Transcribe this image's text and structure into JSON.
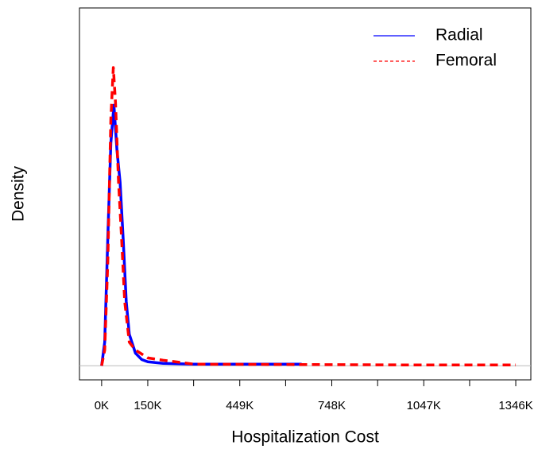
{
  "chart_data": {
    "type": "line",
    "xlabel": "Hospitalization Cost",
    "ylabel": "Density",
    "xlim": [
      -72000,
      1395000
    ],
    "ylim": [
      -9e-07,
      2.28e-05
    ],
    "xticks": [
      {
        "value": 0,
        "label": "0K"
      },
      {
        "value": 150000,
        "label": "150K"
      },
      {
        "value": 449000,
        "label": "449K"
      },
      {
        "value": 748000,
        "label": "748K"
      },
      {
        "value": 1047000,
        "label": "1047K"
      },
      {
        "value": 1346000,
        "label": "1346K"
      }
    ],
    "xminorticks": [
      299000,
      598000,
      897000,
      1196000
    ],
    "legend": "topright",
    "series": [
      {
        "name": "Radial",
        "color": "#0000ff",
        "dash": false,
        "x": [
          0,
          10000,
          20000,
          30000,
          40000,
          50000,
          60000,
          70000,
          80000,
          90000,
          110000,
          130000,
          150000,
          200000,
          300000,
          450000,
          650000
        ],
        "values": [
          0,
          1.5e-06,
          8.1e-06,
          1.42e-05,
          1.66e-05,
          1.37e-05,
          1.17e-05,
          8.1e-06,
          4.1e-06,
          2e-06,
          8e-07,
          4e-07,
          2.5e-07,
          1.5e-07,
          1e-07,
          1e-07,
          1e-07
        ]
      },
      {
        "name": "Femoral",
        "color": "#ff0000",
        "dash": true,
        "x": [
          0,
          10000,
          20000,
          30000,
          38000,
          45000,
          55000,
          65000,
          75000,
          90000,
          110000,
          150000,
          200000,
          300000,
          600000,
          1000000,
          1346000
        ],
        "values": [
          0,
          1e-06,
          6.6e-06,
          1.57e-05,
          1.9e-05,
          1.68e-05,
          1.17e-05,
          8.1e-06,
          4.1e-06,
          1.5e-06,
          1e-06,
          5e-07,
          3.5e-07,
          1e-07,
          8e-08,
          5e-08,
          5e-08
        ]
      }
    ]
  }
}
